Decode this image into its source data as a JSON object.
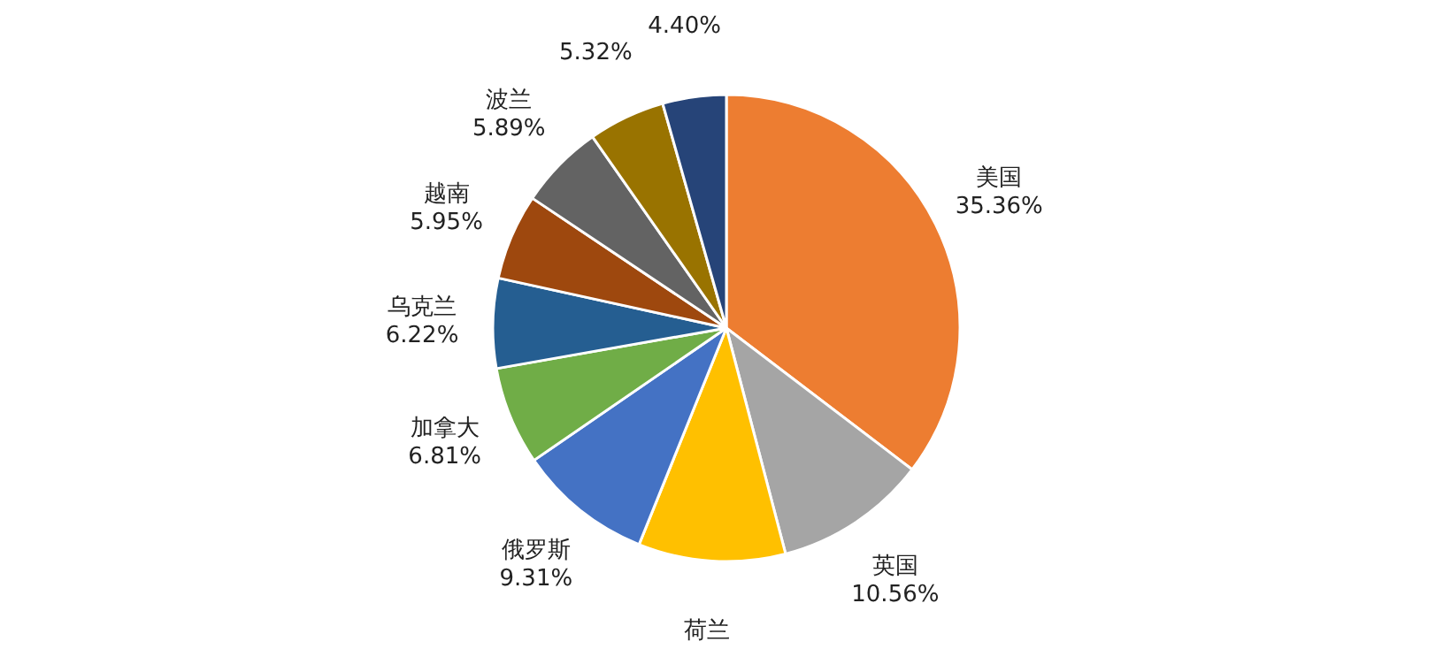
{
  "chart_data": {
    "type": "pie",
    "categories": [
      "美国",
      "英国",
      "荷兰",
      "俄罗斯",
      "加拿大",
      "乌克兰",
      "越南",
      "波兰",
      null,
      null
    ],
    "values": [
      35.36,
      10.56,
      10.18,
      9.31,
      6.81,
      6.22,
      5.95,
      5.89,
      5.32,
      4.4
    ],
    "value_labels": [
      "35.36%",
      "10.56%",
      null,
      "9.31%",
      "6.81%",
      "6.22%",
      "5.95%",
      "5.89%",
      "5.32%",
      "4.40%"
    ],
    "colors": [
      "#ed7d31",
      "#a5a5a5",
      "#ffc000",
      "#4472c4",
      "#70ad47",
      "#255e91",
      "#9e480e",
      "#636363",
      "#997300",
      "#264478"
    ]
  }
}
